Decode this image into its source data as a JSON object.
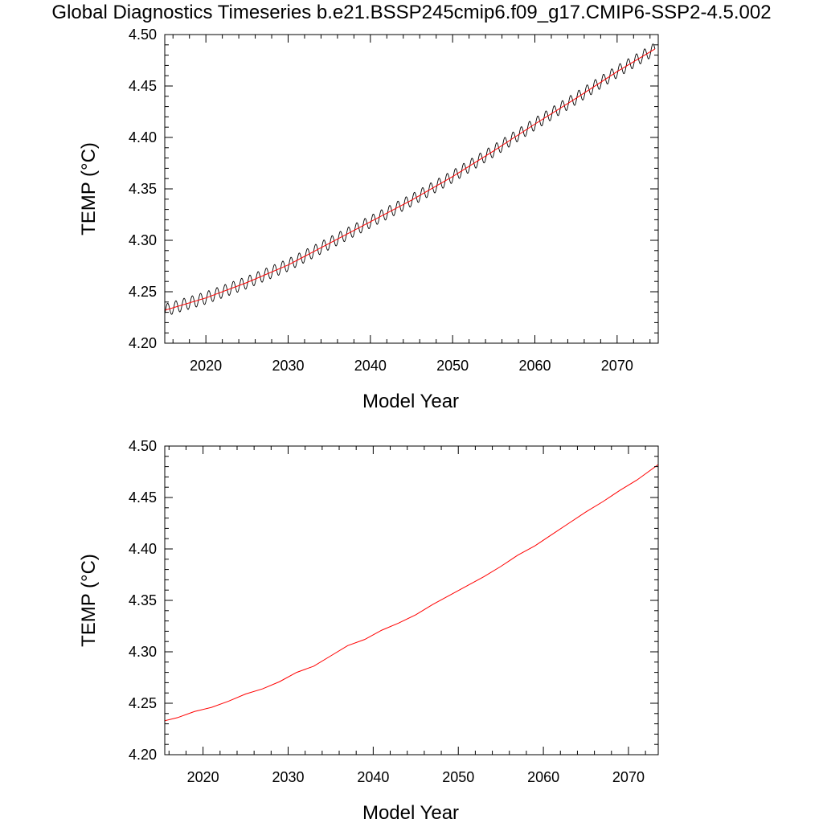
{
  "title": "Global Diagnostics Timeseries b.e21.BSSP245cmip6.f09_g17.CMIP6-SSP2-4.5.002",
  "chart_data": [
    {
      "type": "line",
      "xlabel": "Model Year",
      "ylabel": "TEMP (°C)",
      "xlim": [
        2015,
        2075
      ],
      "ylim": [
        4.2,
        4.5
      ],
      "xticks": [
        2020,
        2030,
        2040,
        2050,
        2060,
        2070
      ],
      "yticks": [
        "4.20",
        "4.25",
        "4.30",
        "4.35",
        "4.40",
        "4.45",
        "4.50"
      ],
      "grid": false,
      "series": [
        {
          "color": "#000000",
          "seasonal_amplitude": 0.006,
          "x": [
            2015,
            2020,
            2025,
            2030,
            2035,
            2040,
            2045,
            2050,
            2055,
            2060,
            2065,
            2070,
            2074.6
          ],
          "y": [
            4.232,
            4.244,
            4.259,
            4.276,
            4.297,
            4.318,
            4.339,
            4.362,
            4.387,
            4.413,
            4.438,
            4.464,
            4.486
          ]
        },
        {
          "color": "#ff0000",
          "x": [
            2015,
            2020,
            2025,
            2030,
            2035,
            2040,
            2045,
            2050,
            2055,
            2060,
            2065,
            2070,
            2074.6
          ],
          "y": [
            4.232,
            4.244,
            4.259,
            4.276,
            4.297,
            4.318,
            4.339,
            4.362,
            4.387,
            4.413,
            4.438,
            4.464,
            4.486
          ]
        }
      ]
    },
    {
      "type": "line",
      "xlabel": "Model Year",
      "ylabel": "TEMP (°C)",
      "xlim": [
        2015.5,
        2073.5
      ],
      "ylim": [
        4.2,
        4.5
      ],
      "xticks": [
        2020,
        2030,
        2040,
        2050,
        2060,
        2070
      ],
      "yticks": [
        "4.20",
        "4.25",
        "4.30",
        "4.35",
        "4.40",
        "4.45",
        "4.50"
      ],
      "grid": false,
      "series": [
        {
          "color": "#ff0000",
          "x": [
            2015.5,
            2017,
            2019,
            2021,
            2023,
            2025,
            2027,
            2029,
            2031,
            2033,
            2035,
            2037,
            2039,
            2041,
            2043,
            2045,
            2047,
            2049,
            2051,
            2053,
            2055,
            2057,
            2059,
            2061,
            2063,
            2065,
            2067,
            2069,
            2071,
            2073.5
          ],
          "y": [
            4.233,
            4.236,
            4.242,
            4.246,
            4.252,
            4.259,
            4.264,
            4.271,
            4.28,
            4.286,
            4.296,
            4.306,
            4.312,
            4.321,
            4.328,
            4.336,
            4.346,
            4.355,
            4.364,
            4.373,
            4.383,
            4.394,
            4.403,
            4.414,
            4.425,
            4.436,
            4.446,
            4.457,
            4.467,
            4.482
          ]
        }
      ]
    }
  ]
}
